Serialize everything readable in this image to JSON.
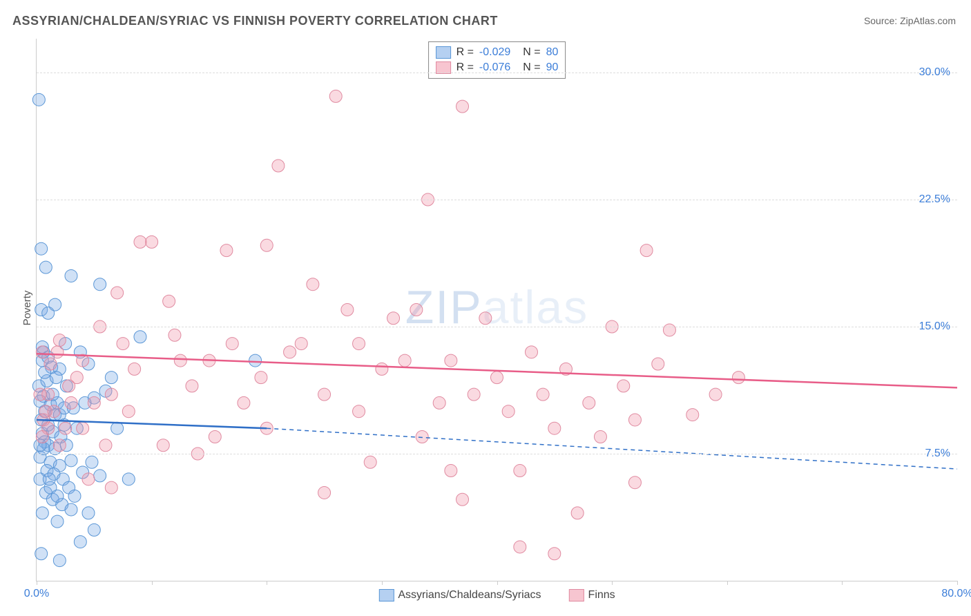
{
  "title": "ASSYRIAN/CHALDEAN/SYRIAC VS FINNISH POVERTY CORRELATION CHART",
  "source": "Source: ZipAtlas.com",
  "ylabel": "Poverty",
  "watermark": {
    "zip": "ZIP",
    "atlas": "atlas"
  },
  "chart": {
    "type": "scatter",
    "xlim": [
      0,
      80
    ],
    "ylim": [
      0,
      32
    ],
    "ytick_step": 7.5,
    "xtick_step": 10,
    "x_labels": [
      {
        "v": 0,
        "t": "0.0%"
      },
      {
        "v": 80,
        "t": "80.0%"
      }
    ],
    "y_labels": [
      {
        "v": 7.5,
        "t": "7.5%"
      },
      {
        "v": 15.0,
        "t": "15.0%"
      },
      {
        "v": 22.5,
        "t": "22.5%"
      },
      {
        "v": 30.0,
        "t": "30.0%"
      }
    ],
    "background_color": "#ffffff",
    "grid_color": "#dddddd",
    "marker_radius": 9,
    "marker_stroke_width": 1,
    "trend_line_width": 2.5,
    "series": [
      {
        "name": "Assyrians/Chaldeans/Syriacs",
        "fill": "rgba(120,170,230,0.35)",
        "stroke": "#5a96d6",
        "swatch_fill": "rgba(120,170,230,0.55)",
        "swatch_stroke": "#5a96d6",
        "trend_color": "#2f6fc7",
        "R": "-0.029",
        "N": "80",
        "trend": {
          "x1": 0,
          "y1": 9.5,
          "x2_solid": 20,
          "y2_solid": 9.0,
          "x2": 80,
          "y2": 6.6
        },
        "points": [
          [
            0.2,
            28.4
          ],
          [
            0.4,
            19.6
          ],
          [
            0.6,
            13.5
          ],
          [
            0.5,
            13.0
          ],
          [
            1.0,
            13.2
          ],
          [
            1.3,
            12.6
          ],
          [
            0.6,
            10.9
          ],
          [
            0.3,
            10.6
          ],
          [
            1.2,
            10.4
          ],
          [
            0.7,
            10.0
          ],
          [
            1.6,
            9.8
          ],
          [
            0.4,
            9.5
          ],
          [
            2.0,
            9.8
          ],
          [
            1.8,
            10.5
          ],
          [
            2.4,
            10.2
          ],
          [
            0.5,
            8.7
          ],
          [
            1.4,
            8.8
          ],
          [
            2.1,
            8.5
          ],
          [
            0.7,
            8.2
          ],
          [
            1.0,
            8.0
          ],
          [
            1.6,
            7.8
          ],
          [
            2.6,
            8.0
          ],
          [
            0.3,
            7.3
          ],
          [
            1.2,
            7.0
          ],
          [
            2.0,
            6.8
          ],
          [
            3.0,
            7.1
          ],
          [
            0.9,
            6.5
          ],
          [
            1.5,
            6.3
          ],
          [
            2.3,
            6.0
          ],
          [
            4.0,
            6.4
          ],
          [
            3.5,
            9.0
          ],
          [
            5.0,
            10.8
          ],
          [
            4.5,
            12.8
          ],
          [
            3.0,
            18.0
          ],
          [
            5.5,
            17.5
          ],
          [
            6.0,
            11.2
          ],
          [
            7.0,
            9.0
          ],
          [
            4.8,
            7.0
          ],
          [
            2.8,
            5.5
          ],
          [
            3.3,
            5.0
          ],
          [
            0.8,
            5.2
          ],
          [
            1.4,
            4.8
          ],
          [
            2.2,
            4.5
          ],
          [
            0.5,
            4.0
          ],
          [
            1.8,
            3.5
          ],
          [
            3.0,
            4.2
          ],
          [
            4.5,
            4.0
          ],
          [
            5.0,
            3.0
          ],
          [
            3.8,
            2.3
          ],
          [
            2.0,
            1.2
          ],
          [
            0.4,
            1.6
          ],
          [
            1.0,
            9.2
          ],
          [
            0.2,
            11.5
          ],
          [
            0.9,
            11.8
          ],
          [
            1.6,
            16.3
          ],
          [
            2.5,
            14.0
          ],
          [
            3.8,
            13.5
          ],
          [
            0.3,
            6.0
          ],
          [
            0.7,
            12.3
          ],
          [
            1.2,
            5.5
          ],
          [
            0.5,
            13.8
          ],
          [
            1.8,
            5.0
          ],
          [
            2.4,
            9.2
          ],
          [
            0.4,
            16.0
          ],
          [
            1.0,
            15.8
          ],
          [
            0.6,
            7.8
          ],
          [
            1.4,
            11.0
          ],
          [
            2.0,
            12.5
          ],
          [
            3.2,
            10.2
          ],
          [
            0.8,
            18.5
          ],
          [
            4.2,
            10.5
          ],
          [
            5.5,
            6.2
          ],
          [
            6.5,
            12.0
          ],
          [
            0.3,
            8.0
          ],
          [
            1.1,
            6.0
          ],
          [
            1.7,
            12.0
          ],
          [
            2.6,
            11.5
          ],
          [
            19.0,
            13.0
          ],
          [
            9.0,
            14.4
          ],
          [
            8.0,
            6.0
          ]
        ]
      },
      {
        "name": "Finns",
        "fill": "rgba(240,150,170,0.35)",
        "stroke": "#e08aa0",
        "swatch_fill": "rgba(240,150,170,0.55)",
        "swatch_stroke": "#e08aa0",
        "trend_color": "#e85d88",
        "R": "-0.076",
        "N": "90",
        "trend": {
          "x1": 0,
          "y1": 13.4,
          "x2_solid": 80,
          "y2_solid": 11.4,
          "x2": 80,
          "y2": 11.4
        },
        "points": [
          [
            0.5,
            13.5
          ],
          [
            0.6,
            9.5
          ],
          [
            1.0,
            11.0
          ],
          [
            2.0,
            14.2
          ],
          [
            3.0,
            10.5
          ],
          [
            4.0,
            13.0
          ],
          [
            5.5,
            15.0
          ],
          [
            6.5,
            11.0
          ],
          [
            8.0,
            10.0
          ],
          [
            10.0,
            20.0
          ],
          [
            11.0,
            8.0
          ],
          [
            12.0,
            14.5
          ],
          [
            13.5,
            11.5
          ],
          [
            15.0,
            13.0
          ],
          [
            16.5,
            19.5
          ],
          [
            17.0,
            14.0
          ],
          [
            18.0,
            10.5
          ],
          [
            19.5,
            12.0
          ],
          [
            20.0,
            19.8
          ],
          [
            21.0,
            24.5
          ],
          [
            22.0,
            13.5
          ],
          [
            23.0,
            14.0
          ],
          [
            24.0,
            17.5
          ],
          [
            25.0,
            11.0
          ],
          [
            26.0,
            28.6
          ],
          [
            27.0,
            16.0
          ],
          [
            28.0,
            10.0
          ],
          [
            29.0,
            7.0
          ],
          [
            30.0,
            12.5
          ],
          [
            31.0,
            15.5
          ],
          [
            32.0,
            13.0
          ],
          [
            33.0,
            16.0
          ],
          [
            34.0,
            22.5
          ],
          [
            35.0,
            10.5
          ],
          [
            36.0,
            13.0
          ],
          [
            37.0,
            28.0
          ],
          [
            38.0,
            11.0
          ],
          [
            39.0,
            15.5
          ],
          [
            40.0,
            12.0
          ],
          [
            41.0,
            10.0
          ],
          [
            42.0,
            6.5
          ],
          [
            43.0,
            13.5
          ],
          [
            44.0,
            11.0
          ],
          [
            45.0,
            9.0
          ],
          [
            46.0,
            12.5
          ],
          [
            47.0,
            4.0
          ],
          [
            48.0,
            10.5
          ],
          [
            49.0,
            8.5
          ],
          [
            50.0,
            15.0
          ],
          [
            51.0,
            11.5
          ],
          [
            52.0,
            9.5
          ],
          [
            53.0,
            19.5
          ],
          [
            54.0,
            12.8
          ],
          [
            42.0,
            2.0
          ],
          [
            45.0,
            1.6
          ],
          [
            55.0,
            14.8
          ],
          [
            57.0,
            9.8
          ],
          [
            59.0,
            11.0
          ],
          [
            36.0,
            6.5
          ],
          [
            52.0,
            5.8
          ],
          [
            61.0,
            12.0
          ],
          [
            4.5,
            6.0
          ],
          [
            6.0,
            8.0
          ],
          [
            7.5,
            14.0
          ],
          [
            9.0,
            20.0
          ],
          [
            2.5,
            9.0
          ],
          [
            14.0,
            7.5
          ],
          [
            3.5,
            12.0
          ],
          [
            5.0,
            10.5
          ],
          [
            12.5,
            13.0
          ],
          [
            1.5,
            10.0
          ],
          [
            2.8,
            11.5
          ],
          [
            0.3,
            11.0
          ],
          [
            1.2,
            12.8
          ],
          [
            0.8,
            10.0
          ],
          [
            25.0,
            5.2
          ],
          [
            28.0,
            14.0
          ],
          [
            20.0,
            9.0
          ],
          [
            37.0,
            4.8
          ],
          [
            15.5,
            8.5
          ],
          [
            8.5,
            12.5
          ],
          [
            11.5,
            16.5
          ],
          [
            33.5,
            8.5
          ],
          [
            6.5,
            5.5
          ],
          [
            4.0,
            9.0
          ],
          [
            2.0,
            8.0
          ],
          [
            1.0,
            9.0
          ],
          [
            0.5,
            8.5
          ],
          [
            1.8,
            13.5
          ],
          [
            7.0,
            17.0
          ]
        ]
      }
    ]
  }
}
